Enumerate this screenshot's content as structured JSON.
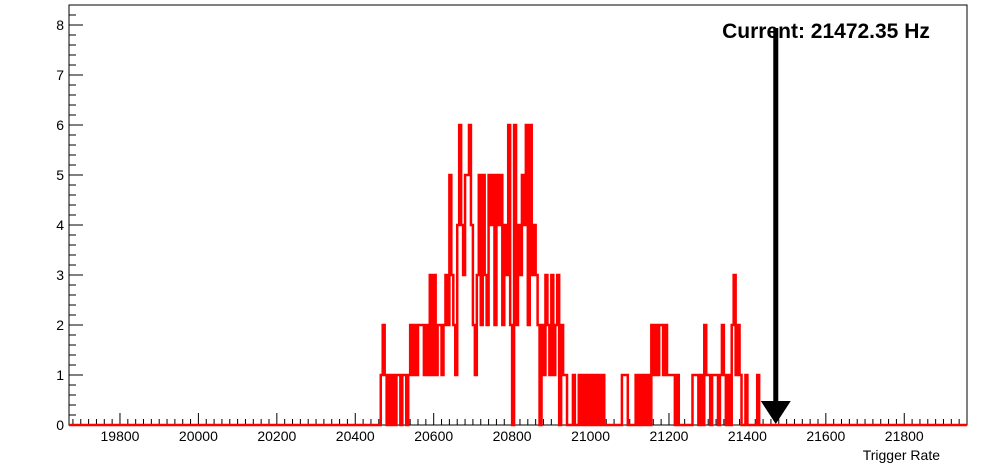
{
  "chart_data": {
    "type": "histogram",
    "title": "",
    "xlabel": "Trigger Rate",
    "ylabel": "",
    "xlim": [
      19670,
      21960
    ],
    "ylim": [
      0,
      8.4
    ],
    "bin_width": 5,
    "x_ticks": [
      19800,
      20000,
      20200,
      20400,
      20600,
      20800,
      21000,
      21200,
      21400,
      21600,
      21800
    ],
    "y_ticks": [
      0,
      1,
      2,
      3,
      4,
      5,
      6,
      7,
      8
    ],
    "line_color": "#ff0000",
    "annotation": {
      "text": "Current: 21472.35 Hz",
      "value": 21472.35
    },
    "arrow_color": "#000000",
    "grid": false,
    "legend": "none",
    "bins": [
      {
        "x": 20465,
        "count": 1
      },
      {
        "x": 20470,
        "count": 2
      },
      {
        "x": 20475,
        "count": 1
      },
      {
        "x": 20480,
        "count": 0
      },
      {
        "x": 20485,
        "count": 1
      },
      {
        "x": 20490,
        "count": 0
      },
      {
        "x": 20495,
        "count": 1
      },
      {
        "x": 20500,
        "count": 0
      },
      {
        "x": 20505,
        "count": 1
      },
      {
        "x": 20510,
        "count": 1
      },
      {
        "x": 20515,
        "count": 0
      },
      {
        "x": 20520,
        "count": 1
      },
      {
        "x": 20525,
        "count": 1
      },
      {
        "x": 20530,
        "count": 0
      },
      {
        "x": 20535,
        "count": 1
      },
      {
        "x": 20540,
        "count": 2
      },
      {
        "x": 20545,
        "count": 1
      },
      {
        "x": 20550,
        "count": 2
      },
      {
        "x": 20555,
        "count": 1
      },
      {
        "x": 20560,
        "count": 2
      },
      {
        "x": 20565,
        "count": 2
      },
      {
        "x": 20570,
        "count": 2
      },
      {
        "x": 20575,
        "count": 1
      },
      {
        "x": 20580,
        "count": 2
      },
      {
        "x": 20585,
        "count": 1
      },
      {
        "x": 20590,
        "count": 3
      },
      {
        "x": 20595,
        "count": 1
      },
      {
        "x": 20600,
        "count": 3
      },
      {
        "x": 20605,
        "count": 1
      },
      {
        "x": 20610,
        "count": 2
      },
      {
        "x": 20615,
        "count": 2
      },
      {
        "x": 20620,
        "count": 1
      },
      {
        "x": 20625,
        "count": 2
      },
      {
        "x": 20630,
        "count": 3
      },
      {
        "x": 20635,
        "count": 2
      },
      {
        "x": 20640,
        "count": 5
      },
      {
        "x": 20645,
        "count": 3
      },
      {
        "x": 20650,
        "count": 2
      },
      {
        "x": 20655,
        "count": 1
      },
      {
        "x": 20660,
        "count": 4
      },
      {
        "x": 20665,
        "count": 6
      },
      {
        "x": 20670,
        "count": 4
      },
      {
        "x": 20675,
        "count": 3
      },
      {
        "x": 20680,
        "count": 5
      },
      {
        "x": 20685,
        "count": 5
      },
      {
        "x": 20690,
        "count": 6
      },
      {
        "x": 20695,
        "count": 4
      },
      {
        "x": 20700,
        "count": 2
      },
      {
        "x": 20705,
        "count": 1
      },
      {
        "x": 20710,
        "count": 3
      },
      {
        "x": 20715,
        "count": 5
      },
      {
        "x": 20720,
        "count": 2
      },
      {
        "x": 20725,
        "count": 5
      },
      {
        "x": 20730,
        "count": 3
      },
      {
        "x": 20735,
        "count": 2
      },
      {
        "x": 20740,
        "count": 5
      },
      {
        "x": 20745,
        "count": 4
      },
      {
        "x": 20750,
        "count": 5
      },
      {
        "x": 20755,
        "count": 2
      },
      {
        "x": 20760,
        "count": 5
      },
      {
        "x": 20765,
        "count": 4
      },
      {
        "x": 20770,
        "count": 5
      },
      {
        "x": 20775,
        "count": 2
      },
      {
        "x": 20780,
        "count": 4
      },
      {
        "x": 20785,
        "count": 3
      },
      {
        "x": 20790,
        "count": 6
      },
      {
        "x": 20795,
        "count": 2
      },
      {
        "x": 20800,
        "count": 0
      },
      {
        "x": 20805,
        "count": 6
      },
      {
        "x": 20810,
        "count": 2
      },
      {
        "x": 20815,
        "count": 4
      },
      {
        "x": 20820,
        "count": 3
      },
      {
        "x": 20825,
        "count": 5
      },
      {
        "x": 20830,
        "count": 4
      },
      {
        "x": 20835,
        "count": 6
      },
      {
        "x": 20840,
        "count": 2
      },
      {
        "x": 20845,
        "count": 6
      },
      {
        "x": 20850,
        "count": 3
      },
      {
        "x": 20855,
        "count": 4
      },
      {
        "x": 20860,
        "count": 3
      },
      {
        "x": 20865,
        "count": 2
      },
      {
        "x": 20870,
        "count": 0
      },
      {
        "x": 20875,
        "count": 2
      },
      {
        "x": 20880,
        "count": 1
      },
      {
        "x": 20885,
        "count": 3
      },
      {
        "x": 20890,
        "count": 2
      },
      {
        "x": 20895,
        "count": 1
      },
      {
        "x": 20900,
        "count": 3
      },
      {
        "x": 20905,
        "count": 1
      },
      {
        "x": 20910,
        "count": 2
      },
      {
        "x": 20915,
        "count": 3
      },
      {
        "x": 20920,
        "count": 0
      },
      {
        "x": 20925,
        "count": 2
      },
      {
        "x": 20930,
        "count": 1
      },
      {
        "x": 20935,
        "count": 1
      },
      {
        "x": 20940,
        "count": 0
      },
      {
        "x": 20945,
        "count": 0
      },
      {
        "x": 20950,
        "count": 0
      },
      {
        "x": 20955,
        "count": 1
      },
      {
        "x": 20960,
        "count": 0
      },
      {
        "x": 20965,
        "count": 0
      },
      {
        "x": 20970,
        "count": 1
      },
      {
        "x": 20975,
        "count": 0
      },
      {
        "x": 20980,
        "count": 1
      },
      {
        "x": 20985,
        "count": 0
      },
      {
        "x": 20990,
        "count": 1
      },
      {
        "x": 20995,
        "count": 0
      },
      {
        "x": 21000,
        "count": 1
      },
      {
        "x": 21005,
        "count": 0
      },
      {
        "x": 21010,
        "count": 1
      },
      {
        "x": 21015,
        "count": 0
      },
      {
        "x": 21020,
        "count": 1
      },
      {
        "x": 21025,
        "count": 0
      },
      {
        "x": 21030,
        "count": 1
      },
      {
        "x": 21035,
        "count": 0
      },
      {
        "x": 21040,
        "count": 0
      },
      {
        "x": 21045,
        "count": 0
      },
      {
        "x": 21050,
        "count": 0
      },
      {
        "x": 21055,
        "count": 0
      },
      {
        "x": 21060,
        "count": 0
      },
      {
        "x": 21065,
        "count": 0
      },
      {
        "x": 21070,
        "count": 0
      },
      {
        "x": 21075,
        "count": 0
      },
      {
        "x": 21080,
        "count": 1
      },
      {
        "x": 21085,
        "count": 1
      },
      {
        "x": 21090,
        "count": 1
      },
      {
        "x": 21095,
        "count": 0
      },
      {
        "x": 21100,
        "count": 0
      },
      {
        "x": 21105,
        "count": 0
      },
      {
        "x": 21110,
        "count": 0
      },
      {
        "x": 21115,
        "count": 1
      },
      {
        "x": 21120,
        "count": 0
      },
      {
        "x": 21125,
        "count": 1
      },
      {
        "x": 21130,
        "count": 0
      },
      {
        "x": 21135,
        "count": 1
      },
      {
        "x": 21140,
        "count": 0
      },
      {
        "x": 21145,
        "count": 1
      },
      {
        "x": 21150,
        "count": 0
      },
      {
        "x": 21155,
        "count": 2
      },
      {
        "x": 21160,
        "count": 1
      },
      {
        "x": 21165,
        "count": 2
      },
      {
        "x": 21170,
        "count": 1
      },
      {
        "x": 21175,
        "count": 2
      },
      {
        "x": 21180,
        "count": 2
      },
      {
        "x": 21185,
        "count": 1
      },
      {
        "x": 21190,
        "count": 2
      },
      {
        "x": 21195,
        "count": 1
      },
      {
        "x": 21200,
        "count": 1
      },
      {
        "x": 21205,
        "count": 1
      },
      {
        "x": 21210,
        "count": 1
      },
      {
        "x": 21215,
        "count": 0
      },
      {
        "x": 21220,
        "count": 1
      },
      {
        "x": 21225,
        "count": 0
      },
      {
        "x": 21230,
        "count": 0
      },
      {
        "x": 21235,
        "count": 0
      },
      {
        "x": 21240,
        "count": 0
      },
      {
        "x": 21245,
        "count": 0
      },
      {
        "x": 21250,
        "count": 0
      },
      {
        "x": 21255,
        "count": 0
      },
      {
        "x": 21260,
        "count": 1
      },
      {
        "x": 21265,
        "count": 1
      },
      {
        "x": 21270,
        "count": 1
      },
      {
        "x": 21275,
        "count": 0
      },
      {
        "x": 21280,
        "count": 1
      },
      {
        "x": 21285,
        "count": 0
      },
      {
        "x": 21290,
        "count": 2
      },
      {
        "x": 21295,
        "count": 1
      },
      {
        "x": 21300,
        "count": 1
      },
      {
        "x": 21305,
        "count": 0
      },
      {
        "x": 21310,
        "count": 1
      },
      {
        "x": 21315,
        "count": 1
      },
      {
        "x": 21320,
        "count": 1
      },
      {
        "x": 21325,
        "count": 0
      },
      {
        "x": 21330,
        "count": 1
      },
      {
        "x": 21335,
        "count": 2
      },
      {
        "x": 21340,
        "count": 1
      },
      {
        "x": 21345,
        "count": 0
      },
      {
        "x": 21350,
        "count": 1
      },
      {
        "x": 21355,
        "count": 0
      },
      {
        "x": 21360,
        "count": 2
      },
      {
        "x": 21365,
        "count": 3
      },
      {
        "x": 21370,
        "count": 1
      },
      {
        "x": 21375,
        "count": 2
      },
      {
        "x": 21380,
        "count": 1
      },
      {
        "x": 21385,
        "count": 0
      },
      {
        "x": 21390,
        "count": 0
      },
      {
        "x": 21395,
        "count": 1
      },
      {
        "x": 21400,
        "count": 0
      },
      {
        "x": 21405,
        "count": 0
      },
      {
        "x": 21410,
        "count": 0
      },
      {
        "x": 21415,
        "count": 0
      },
      {
        "x": 21420,
        "count": 0
      },
      {
        "x": 21425,
        "count": 1
      },
      {
        "x": 21430,
        "count": 0
      }
    ]
  }
}
